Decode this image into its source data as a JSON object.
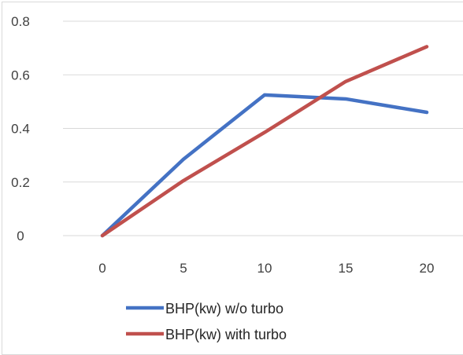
{
  "chart_data": {
    "type": "line",
    "title": "",
    "xlabel": "",
    "ylabel": "",
    "categories": [
      "0",
      "5",
      "10",
      "15",
      "20"
    ],
    "ylim": [
      0,
      0.8
    ],
    "yticks": [
      "0",
      "0.2",
      "0.4",
      "0.6",
      "0.8"
    ],
    "grid": true,
    "legend_position": "bottom",
    "series": [
      {
        "name": "BHP(kw) w/o turbo",
        "values": [
          0,
          0.285,
          0.525,
          0.51,
          0.46
        ],
        "color": "#4472c4"
      },
      {
        "name": "BHP(kw) with turbo",
        "values": [
          0,
          0.205,
          0.385,
          0.575,
          0.705
        ],
        "color": "#c0504d"
      }
    ]
  }
}
